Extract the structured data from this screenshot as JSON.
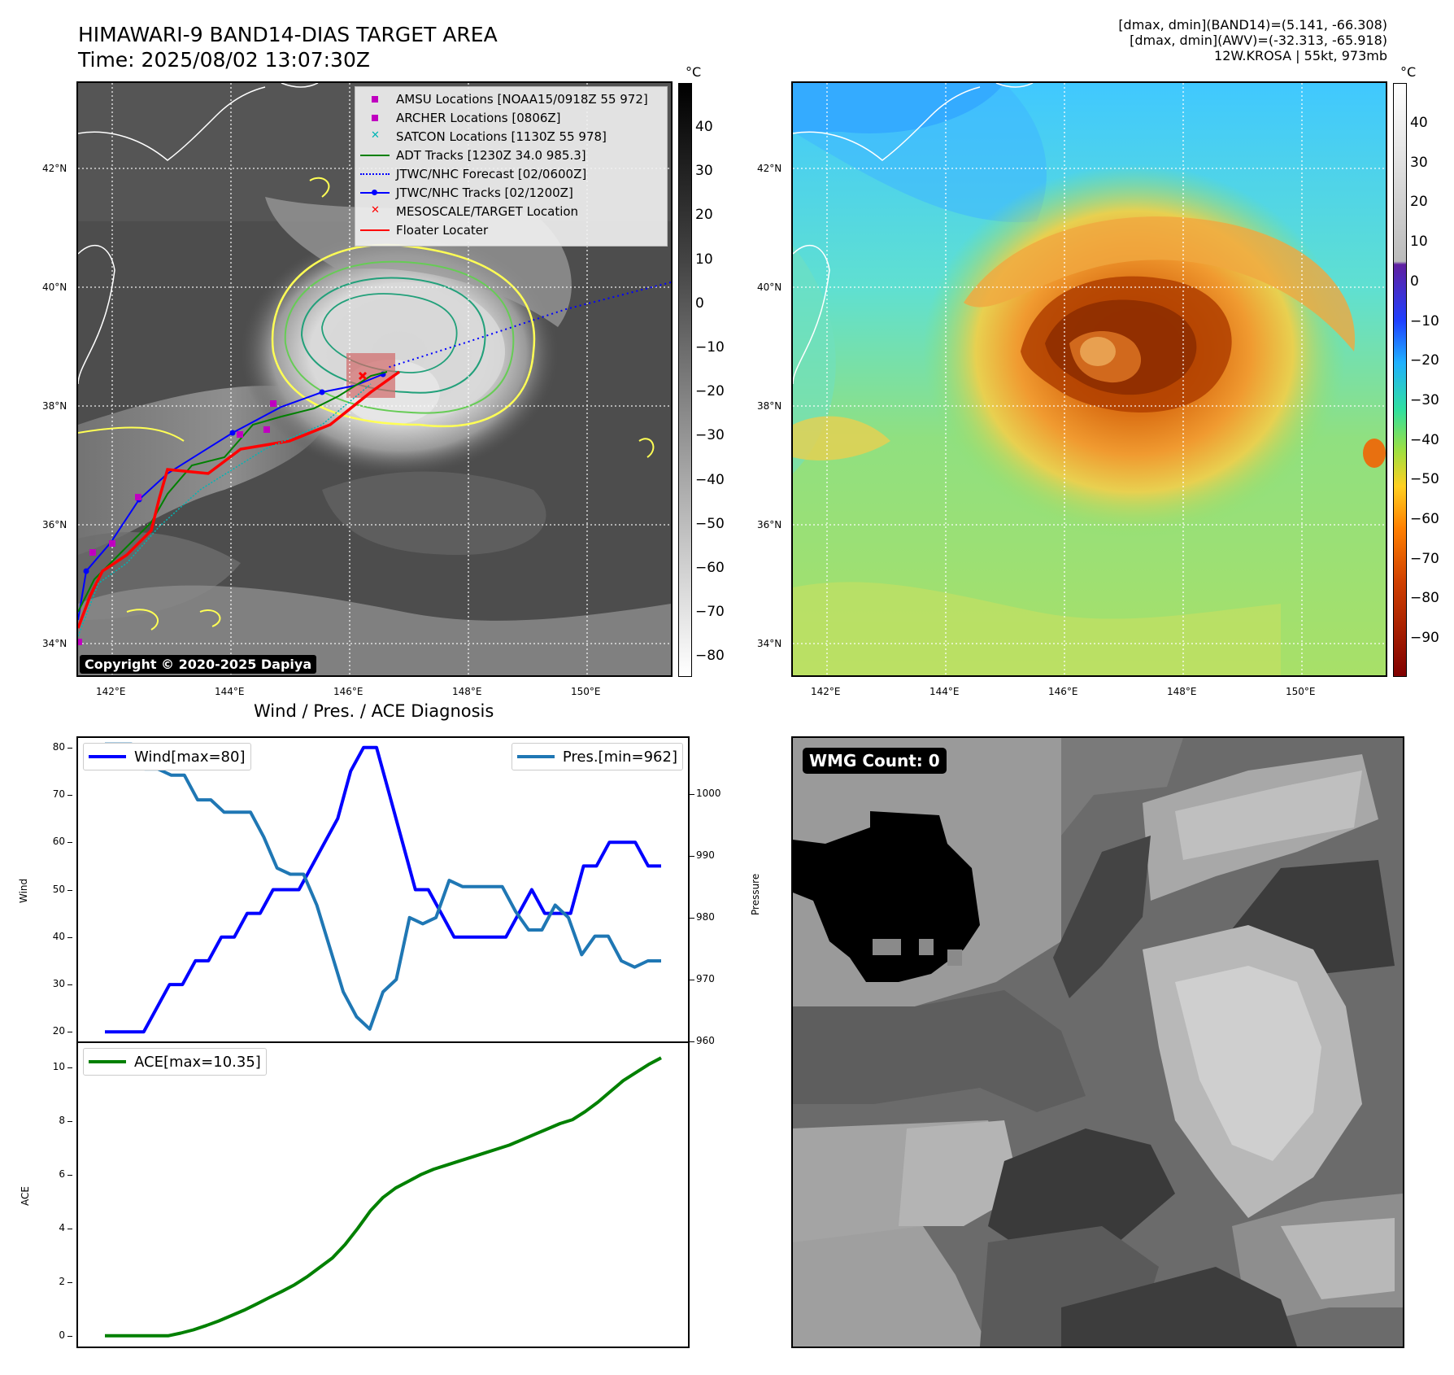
{
  "header": {
    "title_line1": "HIMAWARI-9 BAND14-DIAS TARGET AREA",
    "title_line2": "Time: 2025/08/02 13:07:30Z",
    "info_line1": "[dmax, dmin](BAND14)=(5.141, -66.308)",
    "info_line2": "[dmax, dmin](AWV)=(-32.313, -65.918)",
    "info_line3": "12W.KROSA | 55kt, 973mb"
  },
  "map": {
    "lat_labels": [
      "42°N",
      "40°N",
      "38°N",
      "36°N",
      "34°N"
    ],
    "lon_labels": [
      "142°E",
      "144°E",
      "146°E",
      "148°E",
      "150°E"
    ],
    "copyright": "Copyright © 2020-2025 Dapiya",
    "colorbar_unit": "°C",
    "colorbar_ticks_ir": [
      "40",
      "30",
      "20",
      "10",
      "0",
      "−10",
      "−20",
      "−30",
      "−40",
      "−50",
      "−60",
      "−70",
      "−80"
    ],
    "colorbar_ticks_awv": [
      "40",
      "30",
      "20",
      "10",
      "0",
      "−10",
      "−20",
      "−30",
      "−40",
      "−50",
      "−60",
      "−70",
      "−80",
      "−90"
    ],
    "legend": [
      {
        "label": "AMSU Locations [NOAA15/0918Z 55 972]",
        "symbol": "square",
        "color": "#c000c0"
      },
      {
        "label": "ARCHER Locations [0806Z]",
        "symbol": "square",
        "color": "#c000c0"
      },
      {
        "label": "SATCON Locations [1130Z 55 978]",
        "symbol": "x",
        "color": "#00b5b5"
      },
      {
        "label": "ADT Tracks [1230Z 34.0 985.3]",
        "symbol": "line",
        "color": "#008000"
      },
      {
        "label": "JTWC/NHC Forecast [02/0600Z]",
        "symbol": "dotted",
        "color": "#0000ff"
      },
      {
        "label": "JTWC/NHC Tracks [02/1200Z]",
        "symbol": "line-dot",
        "color": "#0000ff"
      },
      {
        "label": "MESOSCALE/TARGET Location",
        "symbol": "x",
        "color": "#ff0000"
      },
      {
        "label": "Floater Locater",
        "symbol": "line",
        "color": "#ff0000"
      }
    ]
  },
  "diagnosis": {
    "title": "Wind / Pres. / ACE Diagnosis",
    "wind_legend": "Wind[max=80]",
    "pres_legend": "Pres.[min=962]",
    "ace_legend": "ACE[max=10.35]",
    "wind_ylabel": "Wind",
    "pres_ylabel": "Pressure",
    "ace_ylabel": "ACE",
    "wmg_label": "WMG Count: 0"
  },
  "chart_data": [
    {
      "type": "line",
      "title": "Wind / Pres. / ACE Diagnosis",
      "ylabel": "Wind",
      "ylim": [
        18,
        82
      ],
      "yticks": [
        20,
        30,
        40,
        50,
        60,
        70,
        80
      ],
      "series": [
        {
          "name": "Wind[max=80]",
          "color": "#0000ff",
          "values": [
            20,
            20,
            20,
            20,
            25,
            30,
            30,
            35,
            35,
            40,
            40,
            45,
            45,
            50,
            50,
            50,
            55,
            60,
            65,
            75,
            80,
            80,
            70,
            60,
            50,
            50,
            45,
            40,
            40,
            40,
            40,
            40,
            45,
            50,
            45,
            45,
            45,
            55,
            55,
            60,
            60,
            60,
            55,
            55
          ]
        }
      ]
    },
    {
      "type": "line",
      "ylabel": "Pressure",
      "ylim": [
        960,
        1009
      ],
      "yticks": [
        960,
        970,
        980,
        990,
        1000
      ],
      "series": [
        {
          "name": "Pres.[min=962]",
          "color": "#1f77b4",
          "values": [
            1008,
            1008,
            1008,
            1004,
            1004,
            1003,
            1003,
            999,
            999,
            997,
            997,
            997,
            993,
            988,
            987,
            987,
            982,
            975,
            968,
            964,
            962,
            968,
            970,
            980,
            979,
            980,
            986,
            985,
            985,
            985,
            985,
            981,
            978,
            978,
            982,
            980,
            974,
            977,
            977,
            973,
            972,
            973,
            973
          ]
        }
      ]
    },
    {
      "type": "line",
      "ylabel": "ACE",
      "ylim": [
        -0.4,
        10.9
      ],
      "yticks": [
        0,
        2,
        4,
        6,
        8,
        10
      ],
      "series": [
        {
          "name": "ACE[max=10.35]",
          "color": "#008000",
          "values": [
            0,
            0,
            0,
            0,
            0,
            0,
            0.1,
            0.22,
            0.38,
            0.55,
            0.75,
            0.95,
            1.18,
            1.42,
            1.65,
            1.9,
            2.2,
            2.55,
            2.9,
            3.4,
            4.0,
            4.65,
            5.15,
            5.5,
            5.75,
            6.0,
            6.2,
            6.35,
            6.5,
            6.65,
            6.8,
            6.95,
            7.1,
            7.3,
            7.5,
            7.7,
            7.9,
            8.05,
            8.35,
            8.7,
            9.1,
            9.5,
            9.8,
            10.1,
            10.35
          ]
        }
      ]
    }
  ]
}
